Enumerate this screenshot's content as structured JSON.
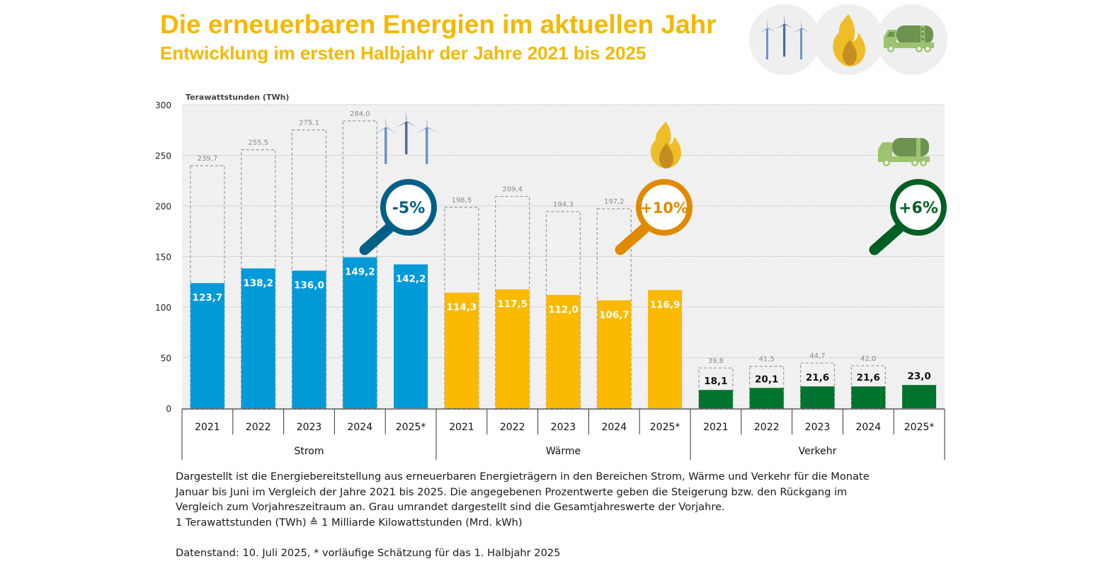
{
  "header": {
    "title": "Die erneuerbaren Energien im aktuellen Jahr",
    "subtitle": "Entwicklung im ersten Halbjahr der Jahre 2021 bis 2025",
    "icons": [
      "wind-turbines-icon",
      "flame-icon",
      "tanker-truck-icon"
    ]
  },
  "chart_data": {
    "type": "bar",
    "title": "Die erneuerbaren Energien im aktuellen Jahr",
    "subtitle": "Entwicklung im ersten Halbjahr der Jahre 2021 bis 2025",
    "ylabel": "Terawattstunden (TWh)",
    "xlabel": "",
    "ylim": [
      0,
      300
    ],
    "yticks": [
      0,
      50,
      100,
      150,
      200,
      250,
      300
    ],
    "grid": true,
    "legend": "none",
    "groups": [
      {
        "name": "Strom",
        "color": "#009ad8",
        "label_color": "#ffffff",
        "change_label": "-5%",
        "change_color": "#005f87",
        "icon": "wind-turbines-icon",
        "categories": [
          "2021",
          "2022",
          "2023",
          "2024",
          "2025*"
        ],
        "values": [
          123.7,
          138.2,
          136.0,
          149.2,
          142.2
        ],
        "value_labels": [
          "123,7",
          "138,2",
          "136,0",
          "149,2",
          "142,2"
        ],
        "full_year_totals": [
          239.7,
          255.5,
          275.1,
          284.0,
          null
        ],
        "full_year_labels": [
          "239,7",
          "255,5",
          "275,1",
          "284,0",
          null
        ]
      },
      {
        "name": "Wärme",
        "color": "#fbb900",
        "label_color": "#ffffff",
        "change_label": "+10%",
        "change_color": "#e08a00",
        "icon": "flame-icon",
        "categories": [
          "2021",
          "2022",
          "2023",
          "2024",
          "2025*"
        ],
        "values": [
          114.3,
          117.5,
          112.0,
          106.7,
          116.9
        ],
        "value_labels": [
          "114,3",
          "117,5",
          "112,0",
          "106,7",
          "116,9"
        ],
        "full_year_totals": [
          198.5,
          209.4,
          194.3,
          197.2,
          null
        ],
        "full_year_labels": [
          "198,5",
          "209,4",
          "194,3",
          "197,2",
          null
        ]
      },
      {
        "name": "Verkehr",
        "color": "#00742f",
        "label_color": "#111111",
        "change_label": "+6%",
        "change_color": "#005f22",
        "icon": "tanker-truck-icon",
        "categories": [
          "2021",
          "2022",
          "2023",
          "2024",
          "2025*"
        ],
        "values": [
          18.1,
          20.1,
          21.6,
          21.6,
          23.0
        ],
        "value_labels": [
          "18,1",
          "20,1",
          "21,6",
          "21,6",
          "23,0"
        ],
        "full_year_totals": [
          39.8,
          41.5,
          44.7,
          42.0,
          null
        ],
        "full_year_labels": [
          "39,8",
          "41,5",
          "44,7",
          "42,0",
          null
        ]
      }
    ]
  },
  "footnote": {
    "lines": [
      "Dargestellt ist die Energiebereitstellung aus erneuerbaren Energieträgern in den Bereichen Strom, Wärme und Verkehr für die Monate",
      "Januar bis Juni im Vergleich der Jahre 2021 bis 2025. Die angegebenen Prozentwerte geben die Steigerung bzw. den Rückgang im",
      "Vergleich zum Vorjahreszeitraum an. Grau umrandet dargestellt sind die Gesamtjahreswerte der Vorjahre.",
      "1 Terawattstunden (TWh) ≙ 1 Milliarde Kilowattstunden (Mrd. kWh)"
    ],
    "data_status": "Datenstand: 10. Juli 2025, * vorläufige Schätzung für das 1. Halbjahr 2025"
  }
}
